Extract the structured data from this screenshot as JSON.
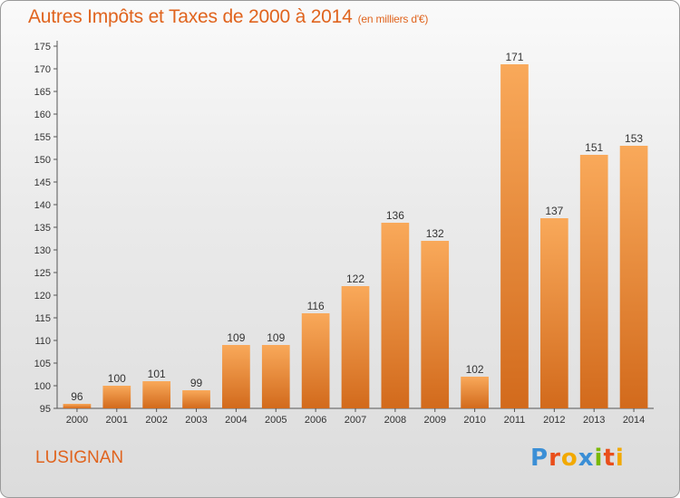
{
  "header": {
    "title": "Autres Impôts et Taxes de 2000 à 2014",
    "subtitle": "(en milliers d'€)"
  },
  "footer": {
    "place": "LUSIGNAN",
    "brand": "Proxiti",
    "brand_colors": [
      "#3b8fd6",
      "#e94e1b",
      "#f2a900",
      "#3b8fd6",
      "#7ab800",
      "#e94e1b",
      "#f2a900"
    ]
  },
  "colors": {
    "accent": "#e0641e",
    "bar_light": "#f9a95a",
    "bar_dark": "#d26a1c"
  },
  "chart_data": {
    "type": "bar",
    "categories": [
      "2000",
      "2001",
      "2002",
      "2003",
      "2004",
      "2005",
      "2006",
      "2007",
      "2008",
      "2009",
      "2010",
      "2011",
      "2012",
      "2013",
      "2014"
    ],
    "values": [
      96,
      100,
      101,
      99,
      109,
      109,
      116,
      122,
      136,
      132,
      102,
      171,
      137,
      151,
      153
    ],
    "ylim": [
      95,
      175
    ],
    "yticks": [
      95,
      100,
      105,
      110,
      115,
      120,
      125,
      130,
      135,
      140,
      145,
      150,
      155,
      160,
      165,
      170,
      175
    ],
    "grid": false,
    "xlabel": "",
    "ylabel": ""
  }
}
